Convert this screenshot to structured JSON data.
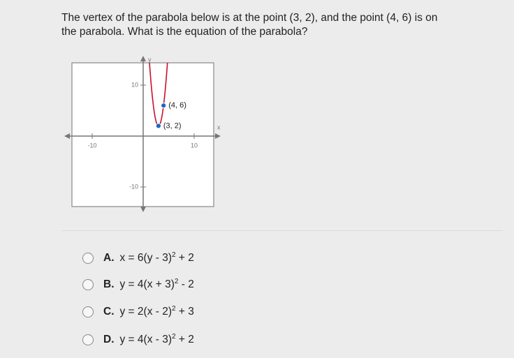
{
  "question": "The vertex of the parabola below is at the point (3, 2), and the point (4, 6) is on the parabola. What is the equation of the parabola?",
  "graph": {
    "x_label": "x",
    "y_label": "y",
    "xticks": [
      -10,
      10
    ],
    "yticks": [
      10,
      -10
    ],
    "points": [
      {
        "x": 4,
        "y": 6,
        "label": "(4, 6)"
      },
      {
        "x": 3,
        "y": 2,
        "label": "(3, 2)"
      }
    ]
  },
  "choices": [
    {
      "letter": "A.",
      "parts": [
        "x = 6(y - 3)",
        "2",
        " + 2"
      ]
    },
    {
      "letter": "B.",
      "parts": [
        "y = 4(x + 3)",
        "2",
        " - 2"
      ]
    },
    {
      "letter": "C.",
      "parts": [
        "y = 2(x - 2)",
        "2",
        " + 3"
      ]
    },
    {
      "letter": "D.",
      "parts": [
        "y = 4(x - 3)",
        "2",
        " + 2"
      ]
    }
  ]
}
